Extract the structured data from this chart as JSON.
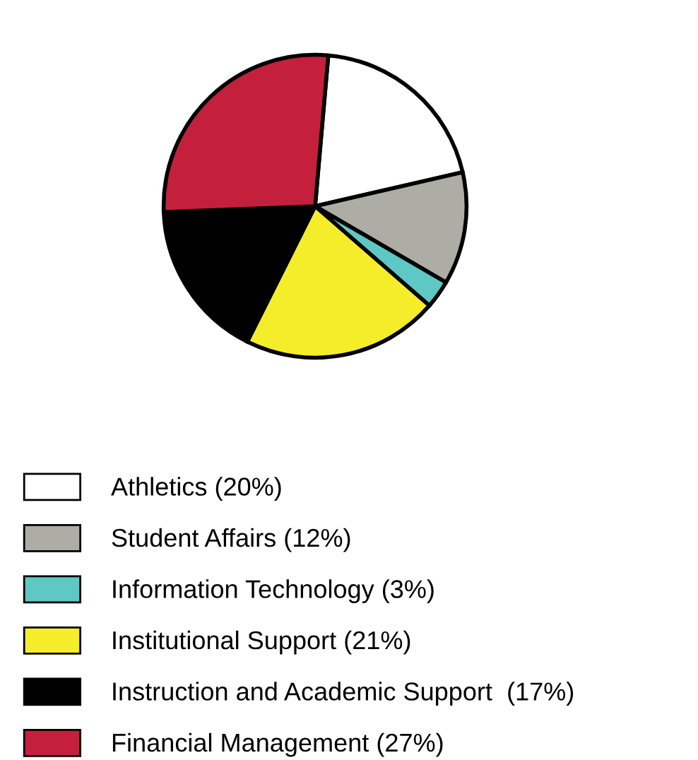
{
  "chart_data": {
    "type": "pie",
    "categories": [
      "Athletics (20%)",
      "Student Affairs (12%)",
      "Information Technology (3%)",
      "Institutional Support (21%)",
      "Instruction and Academic Support  (17%)",
      "Financial Management (27%)"
    ],
    "values": [
      20,
      12,
      3,
      21,
      17,
      27
    ],
    "colors": [
      "#ffffff",
      "#adada5",
      "#5ec8c5",
      "#f5ec2a",
      "#000000",
      "#c4203c"
    ],
    "legend": "bottom"
  }
}
